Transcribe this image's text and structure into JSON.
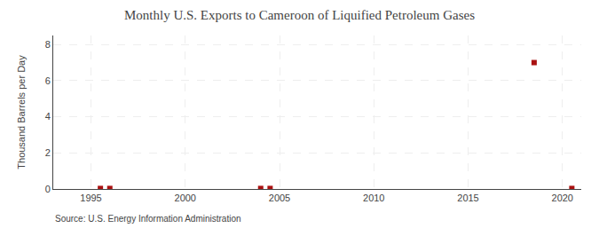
{
  "chart_data": {
    "type": "scatter",
    "title": "Monthly U.S. Exports to Cameroon of Liquified Petroleum Gases",
    "ylabel": "Thousand Barrels per Day",
    "source": "Source: U.S. Energy Information Administration",
    "x": [
      1995.5,
      1996.0,
      2004.0,
      2004.5,
      2018.5,
      2020.5
    ],
    "values": [
      0.03,
      0.03,
      0.03,
      0.03,
      7.0,
      0.03
    ],
    "color": "#aa1111",
    "marker": "square",
    "xlim": [
      1993,
      2021
    ],
    "ylim": [
      0,
      8.5
    ],
    "xticks": [
      1995,
      2000,
      2005,
      2010,
      2015,
      2020
    ],
    "yticks": [
      0,
      2,
      4,
      6,
      8
    ],
    "grid": true
  }
}
